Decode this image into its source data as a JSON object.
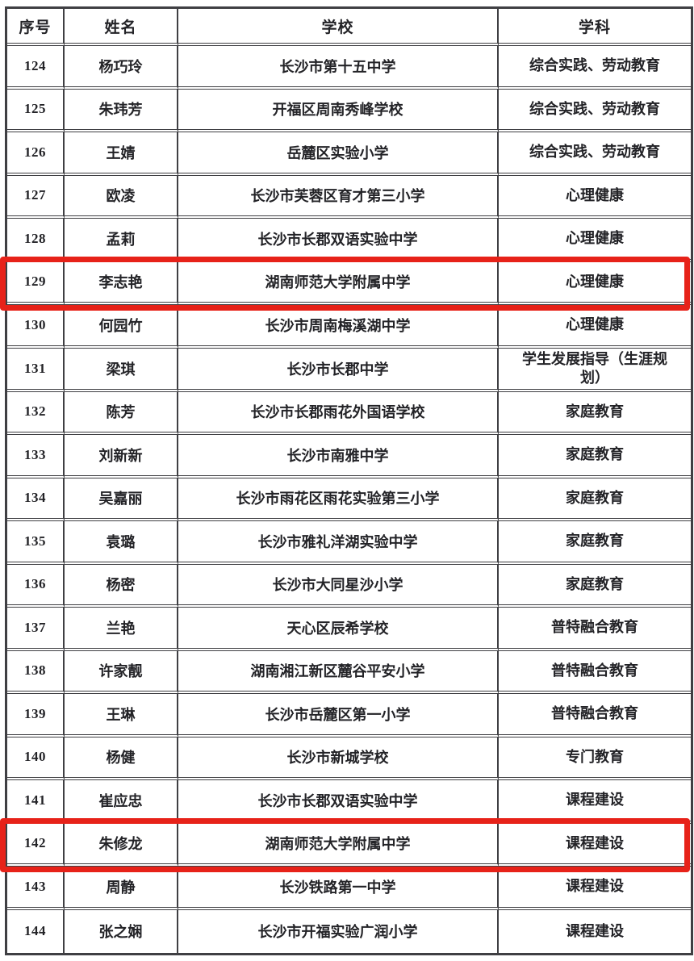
{
  "table": {
    "columns": [
      {
        "key": "no",
        "label": "序号"
      },
      {
        "key": "name",
        "label": "姓名"
      },
      {
        "key": "school",
        "label": "学校"
      },
      {
        "key": "subject",
        "label": "学科"
      }
    ],
    "rows": [
      {
        "no": "124",
        "name": "杨巧玲",
        "school": "长沙市第十五中学",
        "subject": "综合实践、劳动教育"
      },
      {
        "no": "125",
        "name": "朱玮芳",
        "school": "开福区周南秀峰学校",
        "subject": "综合实践、劳动教育"
      },
      {
        "no": "126",
        "name": "王婧",
        "school": "岳麓区实验小学",
        "subject": "综合实践、劳动教育"
      },
      {
        "no": "127",
        "name": "欧凌",
        "school": "长沙市芙蓉区育才第三小学",
        "subject": "心理健康"
      },
      {
        "no": "128",
        "name": "孟莉",
        "school": "长沙市长郡双语实验中学",
        "subject": "心理健康"
      },
      {
        "no": "129",
        "name": "李志艳",
        "school": "湖南师范大学附属中学",
        "subject": "心理健康"
      },
      {
        "no": "130",
        "name": "何园竹",
        "school": "长沙市周南梅溪湖中学",
        "subject": "心理健康"
      },
      {
        "no": "131",
        "name": "梁琪",
        "school": "长沙市长郡中学",
        "subject": "学生发展指导（生涯规划）"
      },
      {
        "no": "132",
        "name": "陈芳",
        "school": "长沙市长郡雨花外国语学校",
        "subject": "家庭教育"
      },
      {
        "no": "133",
        "name": "刘新新",
        "school": "长沙市南雅中学",
        "subject": "家庭教育"
      },
      {
        "no": "134",
        "name": "吴嘉丽",
        "school": "长沙市雨花区雨花实验第三小学",
        "subject": "家庭教育"
      },
      {
        "no": "135",
        "name": "袁璐",
        "school": "长沙市雅礼洋湖实验中学",
        "subject": "家庭教育"
      },
      {
        "no": "136",
        "name": "杨密",
        "school": "长沙市大同星沙小学",
        "subject": "家庭教育"
      },
      {
        "no": "137",
        "name": "兰艳",
        "school": "天心区辰希学校",
        "subject": "普特融合教育"
      },
      {
        "no": "138",
        "name": "许家靓",
        "school": "湖南湘江新区麓谷平安小学",
        "subject": "普特融合教育"
      },
      {
        "no": "139",
        "name": "王琳",
        "school": "长沙市岳麓区第一小学",
        "subject": "普特融合教育"
      },
      {
        "no": "140",
        "name": "杨健",
        "school": "长沙市新城学校",
        "subject": "专门教育"
      },
      {
        "no": "141",
        "name": "崔应忠",
        "school": "长沙市长郡双语实验中学",
        "subject": "课程建设"
      },
      {
        "no": "142",
        "name": "朱修龙",
        "school": "湖南师范大学附属中学",
        "subject": "课程建设"
      },
      {
        "no": "143",
        "name": "周静",
        "school": "长沙铁路第一中学",
        "subject": "课程建设"
      },
      {
        "no": "144",
        "name": "张之娴",
        "school": "长沙市开福实验广润小学",
        "subject": "课程建设"
      }
    ]
  },
  "highlights": {
    "row_numbers": [
      "129",
      "142"
    ],
    "color": "#e72219"
  },
  "colors": {
    "table_border": "#3f3f43",
    "text": "#232327",
    "background": "#ffffff"
  }
}
